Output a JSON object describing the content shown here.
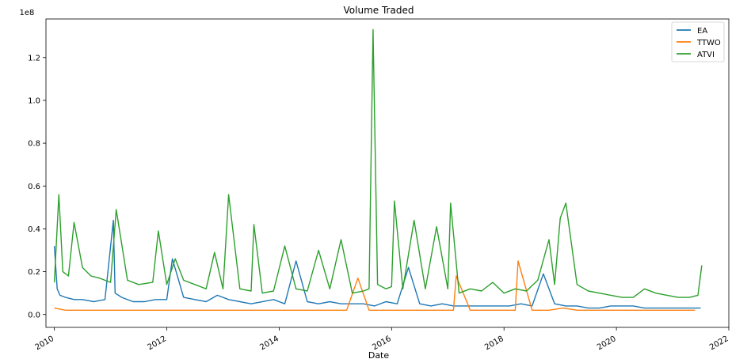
{
  "chart_data": {
    "type": "line",
    "title": "Volume Traded",
    "xlabel": "Date",
    "ylabel": "",
    "y_multiplier_label": "1e8",
    "x_range_years": [
      2009.85,
      2022.0
    ],
    "ylim": [
      -0.06,
      1.38
    ],
    "x_ticks": [
      2010,
      2012,
      2014,
      2016,
      2018,
      2020,
      2022
    ],
    "x_tick_labels": [
      "2010",
      "2012",
      "2014",
      "2016",
      "2018",
      "2020",
      "2022"
    ],
    "y_ticks": [
      0.0,
      0.2,
      0.4,
      0.6,
      0.8,
      1.0,
      1.2
    ],
    "y_tick_labels": [
      "0.0",
      "0.2",
      "0.4",
      "0.6",
      "0.8",
      "1.0",
      "1.2"
    ],
    "grid": false,
    "legend_position": "top-right",
    "series": [
      {
        "name": "EA",
        "color": "#1f77b4",
        "x": [
          2010.0,
          2010.05,
          2010.1,
          2010.2,
          2010.35,
          2010.5,
          2010.7,
          2010.9,
          2011.05,
          2011.08,
          2011.2,
          2011.4,
          2011.6,
          2011.8,
          2012.0,
          2012.1,
          2012.3,
          2012.5,
          2012.7,
          2012.9,
          2013.1,
          2013.3,
          2013.5,
          2013.7,
          2013.9,
          2014.1,
          2014.3,
          2014.5,
          2014.7,
          2014.9,
          2015.1,
          2015.3,
          2015.5,
          2015.7,
          2015.9,
          2016.1,
          2016.3,
          2016.5,
          2016.7,
          2016.9,
          2017.1,
          2017.3,
          2017.5,
          2017.7,
          2017.9,
          2018.1,
          2018.3,
          2018.5,
          2018.7,
          2018.9,
          2019.1,
          2019.3,
          2019.5,
          2019.7,
          2019.9,
          2020.1,
          2020.3,
          2020.5,
          2020.7,
          2020.9,
          2021.1,
          2021.3,
          2021.5
        ],
        "y": [
          0.32,
          0.12,
          0.09,
          0.08,
          0.07,
          0.07,
          0.06,
          0.07,
          0.44,
          0.1,
          0.08,
          0.06,
          0.06,
          0.07,
          0.07,
          0.26,
          0.08,
          0.07,
          0.06,
          0.09,
          0.07,
          0.06,
          0.05,
          0.06,
          0.07,
          0.05,
          0.25,
          0.06,
          0.05,
          0.06,
          0.05,
          0.05,
          0.05,
          0.04,
          0.06,
          0.05,
          0.22,
          0.05,
          0.04,
          0.05,
          0.04,
          0.04,
          0.04,
          0.04,
          0.04,
          0.04,
          0.05,
          0.04,
          0.19,
          0.05,
          0.04,
          0.04,
          0.03,
          0.03,
          0.04,
          0.04,
          0.04,
          0.03,
          0.03,
          0.03,
          0.03,
          0.03,
          0.03
        ]
      },
      {
        "name": "TTWO",
        "color": "#ff7f0e",
        "x": [
          2010.0,
          2010.2,
          2010.5,
          2010.8,
          2011.0,
          2011.3,
          2011.6,
          2011.9,
          2012.2,
          2012.5,
          2012.8,
          2013.1,
          2013.4,
          2013.7,
          2014.0,
          2014.3,
          2014.6,
          2014.9,
          2015.2,
          2015.4,
          2015.6,
          2015.9,
          2016.2,
          2016.5,
          2016.8,
          2017.1,
          2017.15,
          2017.4,
          2017.7,
          2018.0,
          2018.2,
          2018.25,
          2018.5,
          2018.8,
          2019.05,
          2019.3,
          2019.6,
          2019.9,
          2020.2,
          2020.5,
          2020.8,
          2021.1,
          2021.4
        ],
        "y": [
          0.03,
          0.02,
          0.02,
          0.02,
          0.02,
          0.02,
          0.02,
          0.02,
          0.02,
          0.02,
          0.02,
          0.02,
          0.02,
          0.02,
          0.02,
          0.02,
          0.02,
          0.02,
          0.02,
          0.17,
          0.02,
          0.02,
          0.02,
          0.02,
          0.02,
          0.02,
          0.18,
          0.02,
          0.02,
          0.02,
          0.02,
          0.25,
          0.02,
          0.02,
          0.03,
          0.02,
          0.02,
          0.02,
          0.02,
          0.02,
          0.02,
          0.02,
          0.02
        ]
      },
      {
        "name": "ATVI",
        "color": "#2ca02c",
        "x": [
          2010.0,
          2010.08,
          2010.15,
          2010.25,
          2010.35,
          2010.5,
          2010.65,
          2010.8,
          2011.0,
          2011.1,
          2011.3,
          2011.5,
          2011.75,
          2011.85,
          2012.0,
          2012.15,
          2012.3,
          2012.5,
          2012.7,
          2012.85,
          2013.0,
          2013.1,
          2013.3,
          2013.5,
          2013.55,
          2013.7,
          2013.9,
          2014.1,
          2014.3,
          2014.5,
          2014.7,
          2014.9,
          2015.1,
          2015.3,
          2015.5,
          2015.6,
          2015.67,
          2015.75,
          2015.9,
          2016.0,
          2016.05,
          2016.2,
          2016.4,
          2016.6,
          2016.8,
          2017.0,
          2017.05,
          2017.2,
          2017.4,
          2017.6,
          2017.8,
          2018.0,
          2018.2,
          2018.4,
          2018.6,
          2018.8,
          2018.9,
          2019.0,
          2019.1,
          2019.3,
          2019.5,
          2019.7,
          2019.9,
          2020.1,
          2020.3,
          2020.5,
          2020.7,
          2020.9,
          2021.1,
          2021.3,
          2021.45,
          2021.52
        ],
        "y": [
          0.15,
          0.56,
          0.2,
          0.18,
          0.43,
          0.22,
          0.18,
          0.17,
          0.15,
          0.49,
          0.16,
          0.14,
          0.15,
          0.39,
          0.14,
          0.26,
          0.16,
          0.14,
          0.12,
          0.29,
          0.12,
          0.56,
          0.12,
          0.11,
          0.42,
          0.1,
          0.11,
          0.32,
          0.12,
          0.11,
          0.3,
          0.12,
          0.35,
          0.1,
          0.11,
          0.12,
          1.33,
          0.14,
          0.12,
          0.13,
          0.53,
          0.12,
          0.44,
          0.12,
          0.41,
          0.12,
          0.52,
          0.1,
          0.12,
          0.11,
          0.15,
          0.1,
          0.12,
          0.11,
          0.16,
          0.35,
          0.14,
          0.45,
          0.52,
          0.14,
          0.11,
          0.1,
          0.09,
          0.08,
          0.08,
          0.12,
          0.1,
          0.09,
          0.08,
          0.08,
          0.09,
          0.23
        ]
      }
    ]
  }
}
